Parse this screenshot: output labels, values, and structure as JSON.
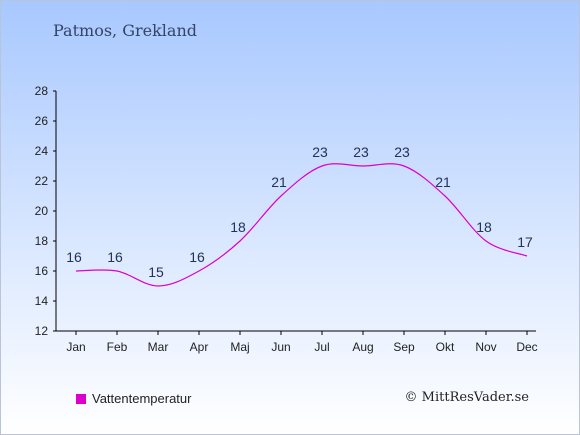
{
  "title": "Patmos, Grekland",
  "copyright": "© MittResVader.se",
  "colors": {
    "series": "#dd00cc",
    "axis": "#000000"
  },
  "chart_data": {
    "type": "line",
    "categories": [
      "Jan",
      "Feb",
      "Mar",
      "Apr",
      "Maj",
      "Jun",
      "Jul",
      "Aug",
      "Sep",
      "Okt",
      "Nov",
      "Dec"
    ],
    "series": [
      {
        "name": "Vattentemperatur",
        "values": [
          16,
          16,
          15,
          16,
          18,
          21,
          23,
          23,
          23,
          21,
          18,
          17
        ]
      }
    ],
    "ylim": [
      12,
      28
    ],
    "yticks": [
      12,
      14,
      16,
      18,
      20,
      22,
      24,
      26,
      28
    ],
    "grid": false,
    "legend": "bottom-left"
  }
}
